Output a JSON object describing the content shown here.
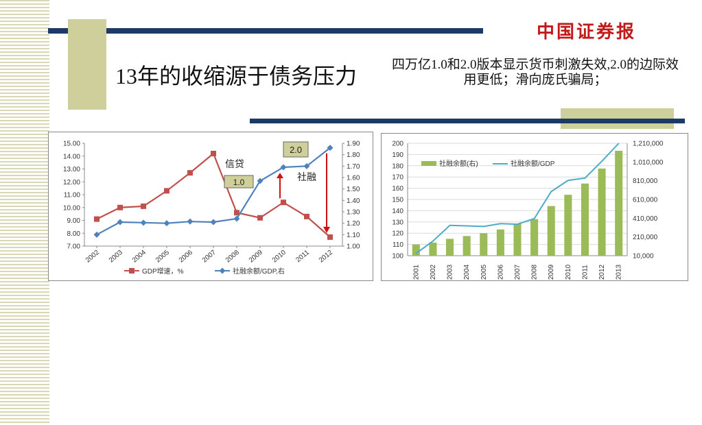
{
  "slide": {
    "title": "13年的收缩源于债务压力",
    "note": "四万亿1.0和2.0版本显示货币刺激失效,2.0的边际效用更低；滑向庞氏骗局；",
    "logo": "中国证券报",
    "colors": {
      "dark_bar": "#1b3a66",
      "tan": "#cfcf9c",
      "logo": "#c21a1a"
    }
  },
  "chart_data": [
    {
      "type": "line",
      "categories": [
        "2002",
        "2003",
        "2004",
        "2005",
        "2006",
        "2007",
        "2008",
        "2009",
        "2010",
        "2011",
        "2012"
      ],
      "series": [
        {
          "name": "GDP增速，%",
          "axis": "left",
          "color": "#c0504d",
          "values": [
            9.1,
            10.0,
            10.1,
            11.3,
            12.7,
            14.2,
            9.6,
            9.2,
            10.4,
            9.3,
            7.7
          ]
        },
        {
          "name": "社融余额/GDP,右",
          "axis": "right",
          "color": "#4f81bd",
          "values": [
            1.1,
            1.21,
            1.205,
            1.2,
            1.215,
            1.21,
            1.24,
            1.57,
            1.69,
            1.7,
            1.86
          ]
        }
      ],
      "left_ticks": [
        "15.00",
        "14.00",
        "13.00",
        "12.00",
        "11.00",
        "10.00",
        "9.00",
        "8.00",
        "7.00"
      ],
      "right_ticks": [
        "1.90",
        "1.80",
        "1.70",
        "1.60",
        "1.50",
        "1.40",
        "1.30",
        "1.20",
        "1.10",
        "1.00"
      ],
      "ylim_left": [
        7,
        15
      ],
      "ylim_right": [
        1.0,
        1.9
      ],
      "annotations": {
        "credit": "信贷",
        "financing": "社融",
        "v1": "1.0",
        "v2": "2.0"
      },
      "legend_position": "bottom"
    },
    {
      "type": "bar",
      "categories": [
        "2001",
        "2002",
        "2003",
        "2004",
        "2005",
        "2006",
        "2007",
        "2008",
        "2009",
        "2010",
        "2011",
        "2012",
        "2013"
      ],
      "series": [
        {
          "name": "社融余额(右)",
          "kind": "bar",
          "axis": "right",
          "color": "#9bbb59",
          "values": [
            130000,
            150000,
            190000,
            220000,
            250000,
            290000,
            350000,
            400000,
            540000,
            660000,
            780000,
            940000,
            1130000
          ]
        },
        {
          "name": "社融余额/GDP",
          "kind": "line",
          "axis": "left",
          "color": "#4bacc6",
          "values": [
            102,
            113,
            127,
            126.5,
            126,
            128.5,
            128,
            133,
            157,
            167,
            169,
            184,
            200
          ]
        }
      ],
      "left_ticks": [
        "200",
        "190",
        "180",
        "170",
        "160",
        "150",
        "140",
        "130",
        "120",
        "110",
        "100"
      ],
      "right_ticks": [
        "1,210,000",
        "1,010,000",
        "810,000",
        "610,000",
        "410,000",
        "210,000",
        "10,000"
      ],
      "ylim_left": [
        100,
        200
      ],
      "ylim_right": [
        10000,
        1210000
      ],
      "legend_position": "top-left"
    }
  ]
}
